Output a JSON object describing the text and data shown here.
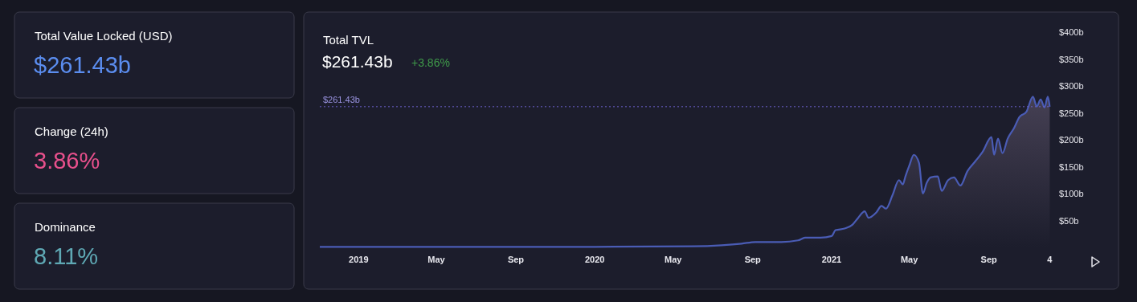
{
  "chart_data": [
    {
      "type": "other",
      "annotations": [
        "Total Value Locked (USD)",
        "$261.43b",
        "Change (24h)",
        "3.86%",
        "Dominance",
        "8.11%"
      ]
    },
    {
      "type": "area",
      "title": "Total TVL",
      "subtitle": "$261.43b",
      "annotations": [
        "+3.86%"
      ],
      "series": [
        {
          "color": "#4a5cb5",
          "x": [
            "2018-11-02",
            "2019-06-01",
            "2020-01-01",
            "2020-06-01",
            "2020-07-15",
            "2020-08-15",
            "2020-09-05",
            "2020-10-15",
            "2020-11-10",
            "2020-11-21",
            "2020-12-15",
            "2021-01-01",
            "2021-01-07",
            "2021-01-21",
            "2021-02-02",
            "2021-02-11",
            "2021-02-21",
            "2021-02-27",
            "2021-03-11",
            "2021-03-19",
            "2021-03-26",
            "2021-04-05",
            "2021-04-15",
            "2021-04-21",
            "2021-04-25",
            "2021-05-01",
            "2021-05-08",
            "2021-05-16",
            "2021-05-22",
            "2021-05-28",
            "2021-06-03",
            "2021-06-14",
            "2021-06-20",
            "2021-06-30",
            "2021-07-09",
            "2021-07-19",
            "2021-07-30",
            "2021-08-11",
            "2021-08-22",
            "2021-09-05",
            "2021-09-09",
            "2021-09-15",
            "2021-09-22",
            "2021-09-30",
            "2021-10-10",
            "2021-10-18",
            "2021-10-29",
            "2021-11-08",
            "2021-11-14",
            "2021-11-20",
            "2021-11-26",
            "2021-12-01",
            "2021-12-04"
          ],
          "values": [
            1,
            1,
            1,
            2,
            4,
            7,
            10,
            10,
            13,
            18,
            18,
            21,
            32,
            35,
            42,
            55,
            67,
            55,
            65,
            77,
            72,
            97,
            125,
            117,
            132,
            152,
            172,
            157,
            100,
            120,
            130,
            132,
            105,
            125,
            130,
            115,
            142,
            160,
            177,
            205,
            172,
            202,
            175,
            202,
            222,
            242,
            252,
            280,
            262,
            275,
            260,
            280,
            261.43
          ]
        }
      ],
      "xlim": [
        "2018-11-02",
        "2021-12-06"
      ],
      "xticks": [
        {
          "value": "2019-01-01",
          "label": "2019"
        },
        {
          "value": "2019-05-01",
          "label": "May"
        },
        {
          "value": "2019-09-01",
          "label": "Sep"
        },
        {
          "value": "2020-01-01",
          "label": "2020"
        },
        {
          "value": "2020-05-01",
          "label": "May"
        },
        {
          "value": "2020-09-01",
          "label": "Sep"
        },
        {
          "value": "2021-01-01",
          "label": "2021"
        },
        {
          "value": "2021-05-01",
          "label": "May"
        },
        {
          "value": "2021-09-01",
          "label": "Sep"
        },
        {
          "value": "2021-12-04",
          "label": "4"
        }
      ],
      "ylim": [
        0,
        400
      ],
      "yticks": [
        {
          "value": 50,
          "label": "$50b"
        },
        {
          "value": 100,
          "label": "$100b"
        },
        {
          "value": 150,
          "label": "$150b"
        },
        {
          "value": 200,
          "label": "$200b"
        },
        {
          "value": 250,
          "label": "$250b"
        },
        {
          "value": 300,
          "label": "$300b"
        },
        {
          "value": 350,
          "label": "$350b"
        },
        {
          "value": 400,
          "label": "$400b"
        }
      ],
      "ref_lines": [
        {
          "axis": "y",
          "value": 261.43,
          "label": "$261.43b",
          "color": "#6a5fc8",
          "line_style": "dotted"
        }
      ],
      "grid": false
    }
  ]
}
